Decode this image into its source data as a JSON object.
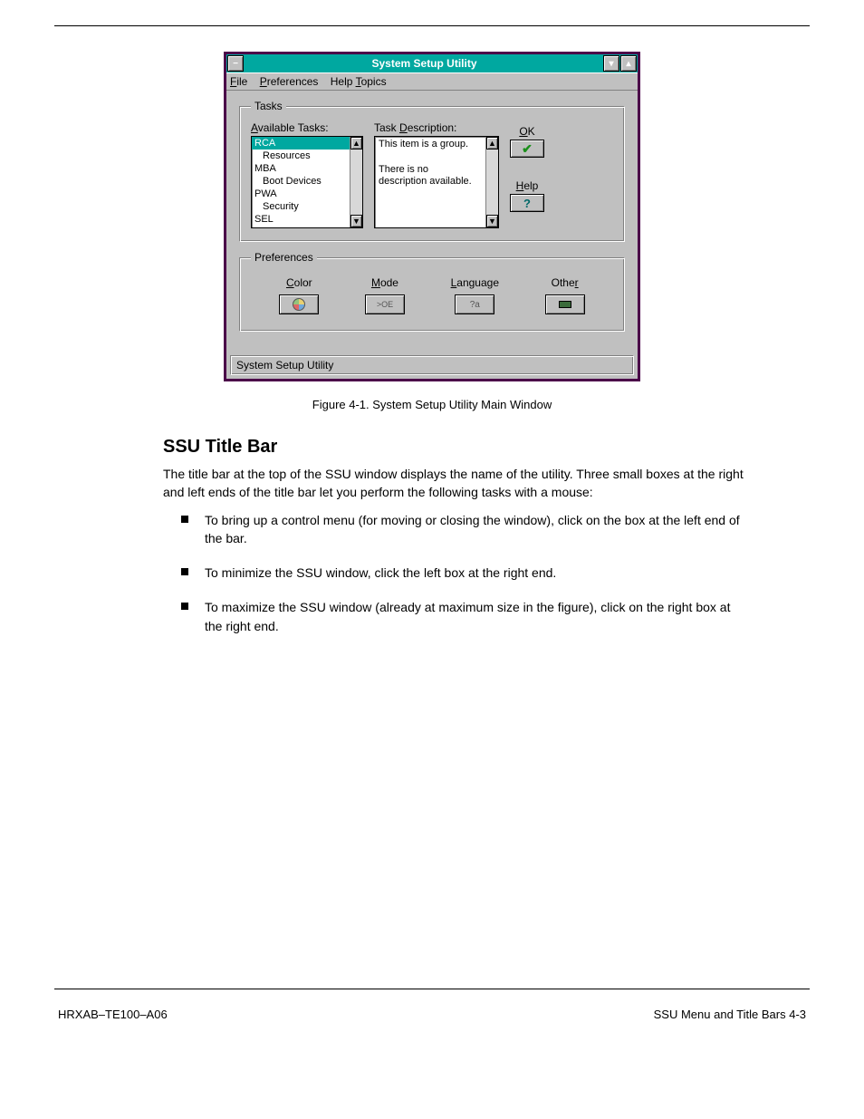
{
  "colors": {
    "frame": "#4b0049",
    "titlebar_bg": "#00a8a0",
    "titlebar_text": "#ffffff",
    "face": "#c0c0c0",
    "white": "#ffffff",
    "check_green": "#1a8f1a",
    "help_teal": "#006868"
  },
  "window": {
    "title": "System Setup Utility",
    "menubar": {
      "file": "File",
      "preferences": "Preferences",
      "help": "Help Topics"
    },
    "tasks_group": {
      "legend": "Tasks",
      "available_label": "Available Tasks:",
      "items": [
        {
          "text": "RCA",
          "indent": false,
          "selected": true
        },
        {
          "text": "Resources",
          "indent": true,
          "selected": false
        },
        {
          "text": "MBA",
          "indent": false,
          "selected": false
        },
        {
          "text": "Boot Devices",
          "indent": true,
          "selected": false
        },
        {
          "text": "PWA",
          "indent": false,
          "selected": false
        },
        {
          "text": "Security",
          "indent": true,
          "selected": false
        },
        {
          "text": "SEL",
          "indent": false,
          "selected": false
        }
      ],
      "description_label": "Task Description:",
      "description_text": "This item is a group.\n\nThere is no\ndescription available."
    },
    "side_buttons": {
      "ok_label": "OK",
      "help_label": "Help"
    },
    "prefs_group": {
      "legend": "Preferences",
      "color": "Color",
      "mode": "Mode",
      "language": "Language",
      "other": "Other",
      "mode_glyph": ">OE",
      "lang_glyph": "?a"
    },
    "statusbar": "System Setup Utility"
  },
  "doc": {
    "fig_caption": "Figure 4-1. System Setup Utility Main Window",
    "heading": "SSU Title Bar",
    "para": "The title bar at the top of the SSU window displays the name of the utility. Three small boxes at the right and left ends of the title bar let you perform the following tasks with a mouse:",
    "bullets": [
      "To bring up a control menu (for moving or closing the window), click on the box at the left end of the bar.",
      "To minimize the SSU window, click the left box at the right end.",
      "To maximize the SSU window (already at maximum size in the figure), click on the right box at the right end."
    ],
    "footer_left": "HRXAB–TE100–A06",
    "footer_right": "SSU Menu and Title Bars   4-3"
  }
}
